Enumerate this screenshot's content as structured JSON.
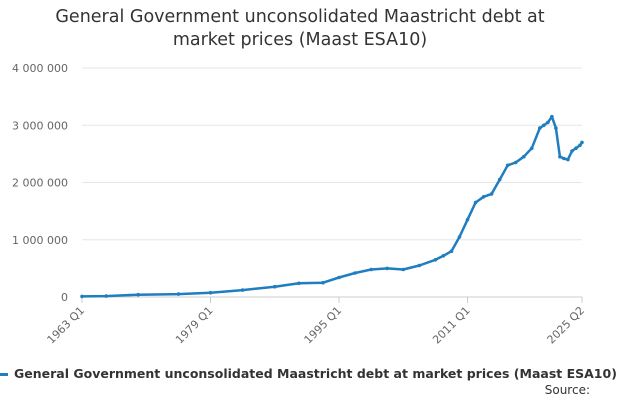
{
  "chart_data": {
    "type": "line",
    "title_lines": [
      "General Government unconsolidated Maastricht debt at",
      "market prices (Maast ESA10)"
    ],
    "xlabel": "",
    "ylabel": "",
    "x_tick_labels": [
      "1963 Q1",
      "1979 Q1",
      "1995 Q1",
      "2011 Q1",
      "2025 Q2"
    ],
    "y_ticks": [
      0,
      1000000,
      2000000,
      3000000,
      4000000
    ],
    "y_tick_labels": [
      "0",
      "1 000 000",
      "2 000 000",
      "3 000 000",
      "4 000 000"
    ],
    "ylim": [
      0,
      4000000
    ],
    "xlim": [
      "1963 Q1",
      "2025 Q2"
    ],
    "grid": true,
    "legend_position": "bottom",
    "color": "#1f7ec0",
    "series": [
      {
        "name": "General Government unconsolidated Maastricht debt at market prices (Maast ESA10)",
        "points": [
          [
            "1963 Q1",
            10000
          ],
          [
            "1966 Q1",
            15000
          ],
          [
            "1970 Q1",
            40000
          ],
          [
            "1975 Q1",
            50000
          ],
          [
            "1979 Q1",
            75000
          ],
          [
            "1983 Q1",
            120000
          ],
          [
            "1987 Q1",
            180000
          ],
          [
            "1990 Q1",
            240000
          ],
          [
            "1993 Q1",
            250000
          ],
          [
            "1995 Q1",
            340000
          ],
          [
            "1997 Q1",
            420000
          ],
          [
            "1999 Q1",
            480000
          ],
          [
            "2001 Q1",
            500000
          ],
          [
            "2003 Q1",
            480000
          ],
          [
            "2005 Q1",
            550000
          ],
          [
            "2007 Q1",
            650000
          ],
          [
            "2008 Q1",
            720000
          ],
          [
            "2009 Q1",
            800000
          ],
          [
            "2010 Q1",
            1050000
          ],
          [
            "2011 Q1",
            1350000
          ],
          [
            "2012 Q1",
            1650000
          ],
          [
            "2013 Q1",
            1750000
          ],
          [
            "2014 Q1",
            1800000
          ],
          [
            "2015 Q1",
            2050000
          ],
          [
            "2016 Q1",
            2300000
          ],
          [
            "2017 Q1",
            2350000
          ],
          [
            "2018 Q1",
            2450000
          ],
          [
            "2019 Q1",
            2600000
          ],
          [
            "2020 Q1",
            2950000
          ],
          [
            "2020 Q3",
            3000000
          ],
          [
            "2021 Q1",
            3050000
          ],
          [
            "2021 Q3",
            3150000
          ],
          [
            "2022 Q1",
            2950000
          ],
          [
            "2022 Q3",
            2450000
          ],
          [
            "2023 Q1",
            2420000
          ],
          [
            "2023 Q3",
            2400000
          ],
          [
            "2024 Q1",
            2550000
          ],
          [
            "2024 Q3",
            2600000
          ],
          [
            "2025 Q1",
            2650000
          ],
          [
            "2025 Q2",
            2700000
          ]
        ]
      }
    ],
    "source_label": "Source:"
  }
}
